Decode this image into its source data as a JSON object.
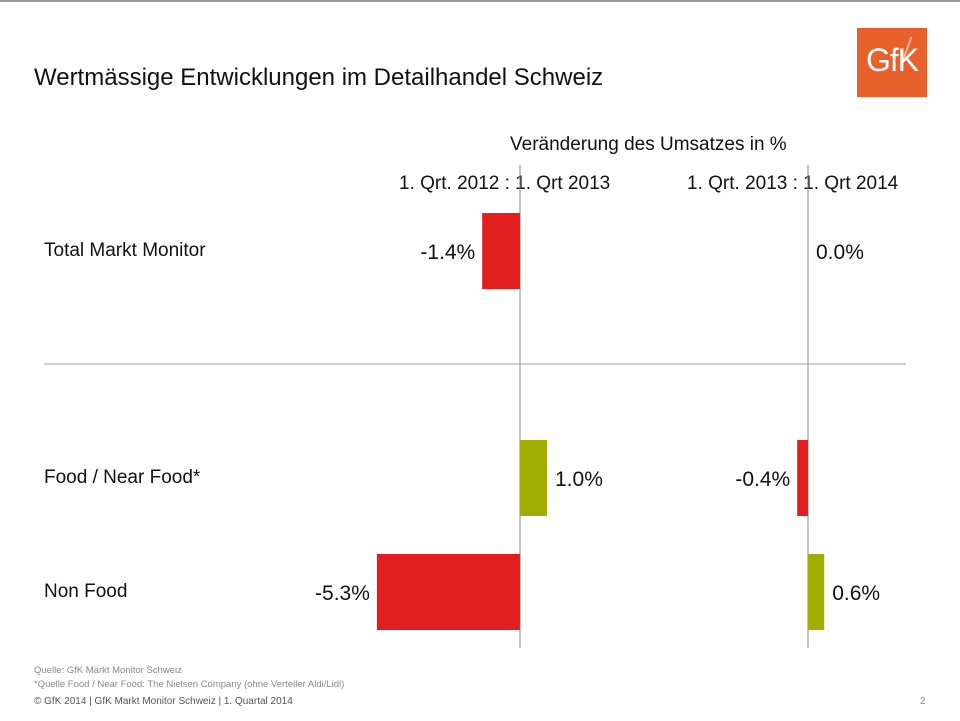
{
  "title": "Wertmässige Entwicklungen im Detailhandel Schweiz",
  "logo_text": "GfK",
  "colors": {
    "negative": "#e21e1e",
    "positive": "#a1ad00",
    "logo": "#e8612c"
  },
  "chart_data": {
    "type": "bar",
    "orientation": "horizontal",
    "subtitle": "Veränderung des Umsatzes in %",
    "panels": [
      {
        "name": "1. Qrt. 2012 : 1. Qrt 2013",
        "values": [
          {
            "category": "Total Markt Monitor",
            "value": -1.4,
            "label": "-1.4%"
          },
          {
            "category": "Food / Near Food*",
            "value": 1.0,
            "label": "1.0%"
          },
          {
            "category": "Non Food",
            "value": -5.3,
            "label": "-5.3%"
          }
        ]
      },
      {
        "name": "1. Qrt. 2013 : 1. Qrt 2014",
        "values": [
          {
            "category": "Total Markt Monitor",
            "value": 0.0,
            "label": "0.0%"
          },
          {
            "category": "Food / Near Food*",
            "value": -0.4,
            "label": "-0.4%"
          },
          {
            "category": "Non Food",
            "value": 0.6,
            "label": "0.6%"
          }
        ]
      }
    ],
    "categories": [
      "Total Markt Monitor",
      "Food / Near Food*",
      "Non Food"
    ],
    "grid": false
  },
  "footer": {
    "source": "Quelle: GfK Markt Monitor Schweiz",
    "source_food": "*Quelle Food / Near Food: The Nielsen Company (ohne Verteiler Aldi/Lidl)",
    "copyright": "© GfK 2014 | GfK Markt Monitor Schweiz | 1. Quartal 2014",
    "page": "2"
  }
}
